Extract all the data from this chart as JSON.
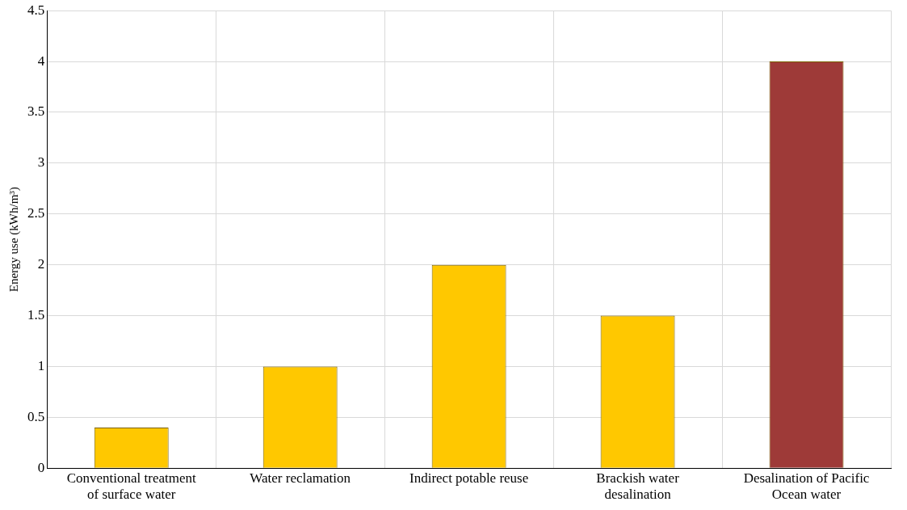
{
  "chart_data": {
    "type": "bar",
    "ylabel": "Energy use (kWh/m³)",
    "categories": [
      "Conventional treatment of surface water",
      "Water reclamation",
      "Indirect potable reuse",
      "Brackish water desalination",
      "Desalination of Pacific Ocean water"
    ],
    "values": [
      0.4,
      1,
      2,
      1.5,
      4
    ],
    "colors": [
      "#ffc800",
      "#ffc800",
      "#ffc800",
      "#ffc800",
      "#9e3a38"
    ],
    "ylim": [
      0,
      4.5
    ],
    "yticks": [
      0,
      0.5,
      1,
      1.5,
      2,
      2.5,
      3,
      3.5,
      4,
      4.5
    ],
    "grid": true,
    "legend": false
  }
}
